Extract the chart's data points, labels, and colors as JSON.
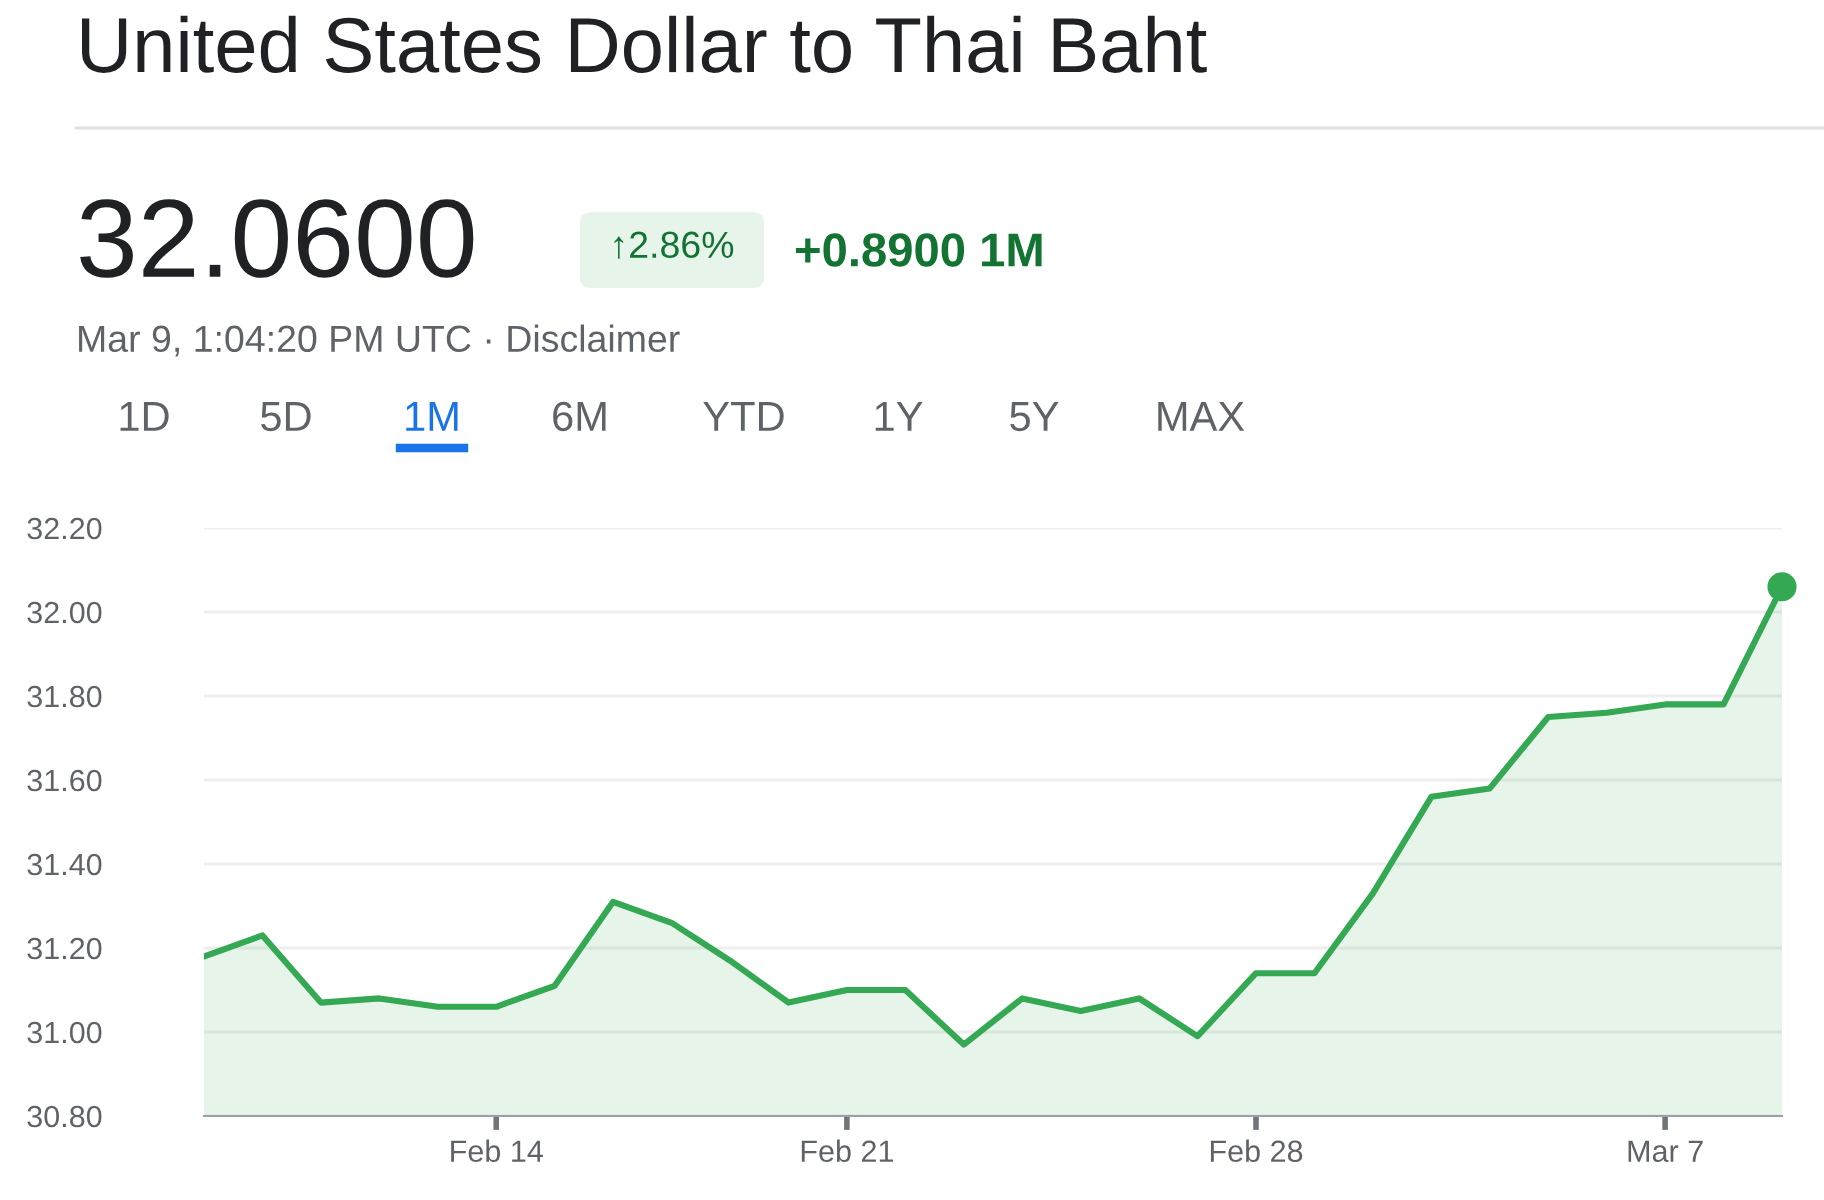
{
  "chart_data": {
    "type": "area",
    "title": "United States Dollar to Thai Baht",
    "subtitle": "Mar 9, 1:04:20 PM UTC · Disclaimer",
    "annotations": [
      "32.0600",
      "↑2.86%",
      "+0.8900 1M",
      "1D",
      "5D",
      "1M",
      "6M",
      "YTD",
      "1Y",
      "5Y",
      "MAX"
    ],
    "categories": [
      null,
      null,
      null,
      null,
      null,
      "Feb 14",
      null,
      null,
      null,
      null,
      null,
      "Feb 21",
      null,
      null,
      null,
      null,
      null,
      null,
      "Feb 28",
      null,
      null,
      null,
      null,
      null,
      null,
      "Mar 7",
      null,
      null
    ],
    "series": [
      {
        "color": "#34a853",
        "values": [
          31.18,
          31.23,
          31.07,
          31.08,
          31.06,
          31.06,
          31.11,
          31.31,
          31.26,
          31.17,
          31.07,
          31.1,
          31.1,
          30.97,
          31.08,
          31.05,
          31.08,
          30.99,
          31.14,
          31.14,
          31.33,
          31.56,
          31.58,
          31.75,
          31.76,
          31.78,
          31.78,
          32.06
        ]
      },
      {
        "type": "scatter",
        "color": "#34a853",
        "values": [
          null,
          null,
          null,
          null,
          null,
          null,
          null,
          null,
          null,
          null,
          null,
          null,
          null,
          null,
          null,
          null,
          null,
          null,
          null,
          null,
          null,
          null,
          null,
          null,
          null,
          null,
          null,
          32.06
        ]
      }
    ],
    "ylim": [
      30.8,
      32.2
    ],
    "yticks": [
      {
        "value": 30.8,
        "label": "30.80"
      },
      {
        "value": 31.0,
        "label": "31.00"
      },
      {
        "value": 31.2,
        "label": "31.20"
      },
      {
        "value": 31.4,
        "label": "31.40"
      },
      {
        "value": 31.6,
        "label": "31.60"
      },
      {
        "value": 31.8,
        "label": "31.80"
      },
      {
        "value": 32.0,
        "label": "32.00"
      },
      {
        "value": 32.2,
        "label": "32.20"
      }
    ],
    "grid": "y",
    "legend": false
  }
}
